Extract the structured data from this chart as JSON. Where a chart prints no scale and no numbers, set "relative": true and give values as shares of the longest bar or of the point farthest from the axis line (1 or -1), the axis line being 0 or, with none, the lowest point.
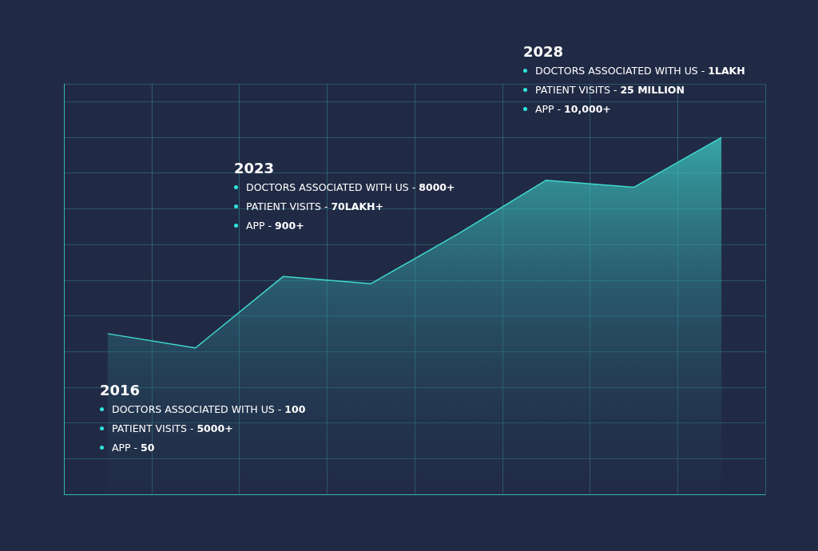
{
  "chart_data": {
    "type": "area",
    "relative": true,
    "categories": [
      null,
      null,
      null,
      null,
      null,
      null,
      null,
      null
    ],
    "series": [
      {
        "color": "#3fd9cf",
        "values": [
          0.45,
          0.41,
          0.61,
          0.59,
          0.73,
          0.88,
          0.86,
          1
        ]
      }
    ],
    "grid": true,
    "marker": "none",
    "line_style": "solid",
    "annotations": [
      "2016",
      "DOCTORS ASSOCIATED WITH US - 100",
      "PATIENT VISITS - 5000+",
      "APP - 50",
      "2023",
      "DOCTORS ASSOCIATED WITH US - 8000+",
      "PATIENT VISITS - 70LAKH+",
      "APP - 900+",
      "2028",
      "DOCTORS ASSOCIATED WITH US - 1LAKH",
      "PATIENT VISITS - 25 MILLION",
      "APP - 10,000+"
    ]
  }
}
